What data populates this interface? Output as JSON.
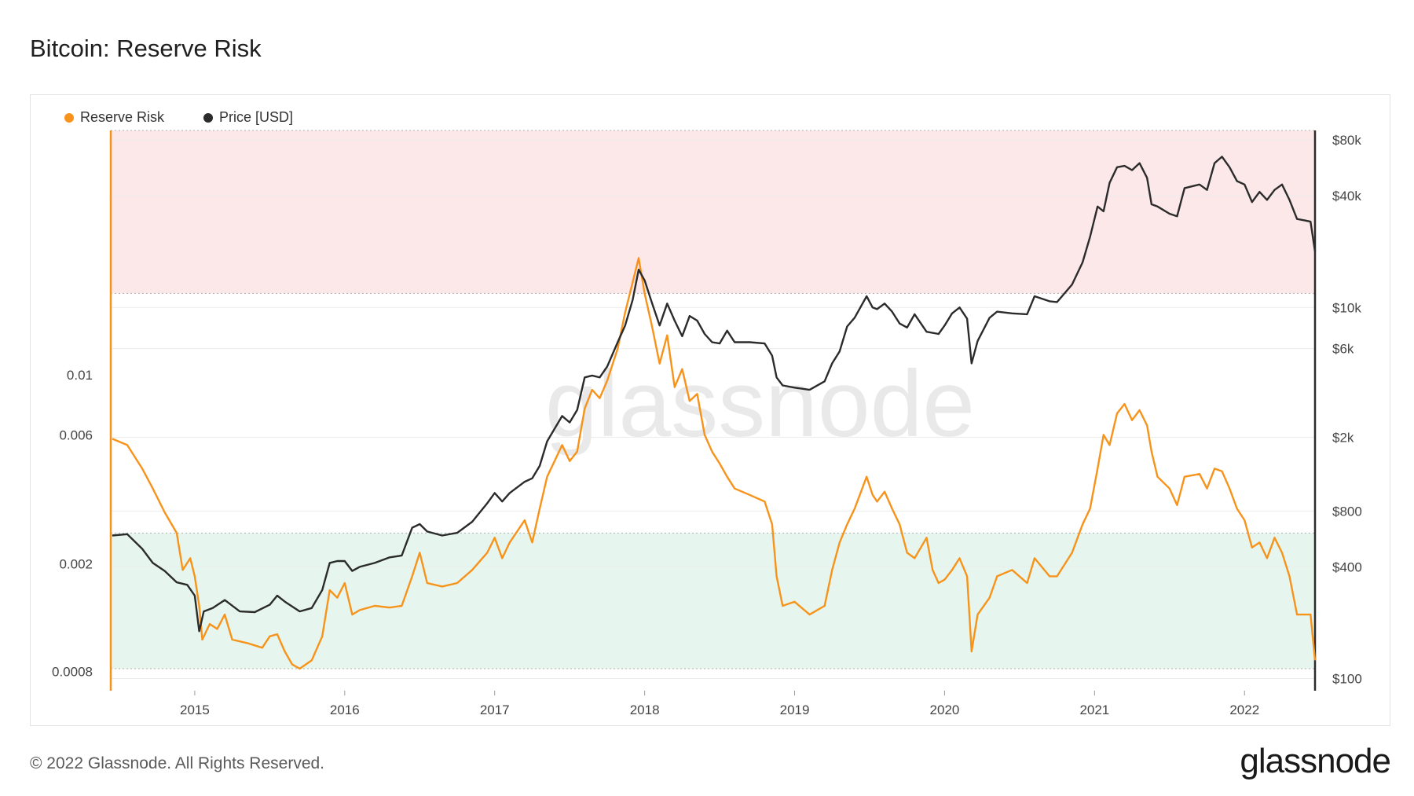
{
  "title": "Bitcoin: Reserve Risk",
  "footer": "© 2022 Glassnode. All Rights Reserved.",
  "brand": "glassnode",
  "watermark": "glassnode",
  "legend": [
    {
      "label": "Reserve Risk",
      "color": "#f7931a"
    },
    {
      "label": "Price [USD]",
      "color": "#2b2b2b"
    }
  ],
  "chart_data": {
    "type": "line",
    "title": "Bitcoin: Reserve Risk",
    "x_ticks": [
      "2015",
      "2016",
      "2017",
      "2018",
      "2019",
      "2020",
      "2021",
      "2022"
    ],
    "x_range": [
      2014.44,
      2022.47
    ],
    "left_axis": {
      "scale": "log",
      "range": [
        0.00068,
        0.08
      ],
      "ticks": [
        {
          "value": 0.0008,
          "label": "0.0008"
        },
        {
          "value": 0.002,
          "label": "0.002"
        },
        {
          "value": 0.006,
          "label": "0.006"
        },
        {
          "value": 0.01,
          "label": "0.01"
        }
      ]
    },
    "right_axis": {
      "scale": "log",
      "range": [
        86,
        90000
      ],
      "ticks": [
        {
          "value": 100,
          "label": "$100"
        },
        {
          "value": 400,
          "label": "$400"
        },
        {
          "value": 800,
          "label": "$800"
        },
        {
          "value": 2000,
          "label": "$2k"
        },
        {
          "value": 6000,
          "label": "$6k"
        },
        {
          "value": 10000,
          "label": "$10k"
        },
        {
          "value": 40000,
          "label": "$40k"
        },
        {
          "value": 80000,
          "label": "$80k"
        }
      ]
    },
    "bands": [
      {
        "name": "red",
        "from": 0.02,
        "to": 0.08,
        "color": "#fce8e8"
      },
      {
        "name": "green",
        "from": 0.00082,
        "to": 0.0026,
        "color": "#e6f6ee"
      }
    ],
    "series": [
      {
        "name": "Reserve Risk",
        "axis": "left",
        "color": "#f7931a",
        "points": [
          [
            2014.45,
            0.0058
          ],
          [
            2014.55,
            0.0055
          ],
          [
            2014.65,
            0.0045
          ],
          [
            2014.72,
            0.0038
          ],
          [
            2014.8,
            0.0031
          ],
          [
            2014.88,
            0.0026
          ],
          [
            2014.92,
            0.0019
          ],
          [
            2014.97,
            0.0021
          ],
          [
            2015.0,
            0.0018
          ],
          [
            2015.03,
            0.0014
          ],
          [
            2015.05,
            0.00105
          ],
          [
            2015.1,
            0.0012
          ],
          [
            2015.15,
            0.00115
          ],
          [
            2015.2,
            0.0013
          ],
          [
            2015.25,
            0.00105
          ],
          [
            2015.35,
            0.00102
          ],
          [
            2015.45,
            0.00098
          ],
          [
            2015.5,
            0.00108
          ],
          [
            2015.55,
            0.0011
          ],
          [
            2015.6,
            0.00095
          ],
          [
            2015.65,
            0.00085
          ],
          [
            2015.7,
            0.00082
          ],
          [
            2015.78,
            0.00088
          ],
          [
            2015.85,
            0.00108
          ],
          [
            2015.9,
            0.0016
          ],
          [
            2015.95,
            0.0015
          ],
          [
            2016.0,
            0.0017
          ],
          [
            2016.05,
            0.0013
          ],
          [
            2016.1,
            0.00135
          ],
          [
            2016.2,
            0.0014
          ],
          [
            2016.3,
            0.00138
          ],
          [
            2016.38,
            0.0014
          ],
          [
            2016.45,
            0.0018
          ],
          [
            2016.5,
            0.0022
          ],
          [
            2016.55,
            0.0017
          ],
          [
            2016.65,
            0.00165
          ],
          [
            2016.75,
            0.0017
          ],
          [
            2016.85,
            0.0019
          ],
          [
            2016.95,
            0.0022
          ],
          [
            2017.0,
            0.0025
          ],
          [
            2017.05,
            0.0021
          ],
          [
            2017.1,
            0.0024
          ],
          [
            2017.2,
            0.0029
          ],
          [
            2017.25,
            0.0024
          ],
          [
            2017.3,
            0.0032
          ],
          [
            2017.35,
            0.0042
          ],
          [
            2017.45,
            0.0055
          ],
          [
            2017.5,
            0.0048
          ],
          [
            2017.55,
            0.0052
          ],
          [
            2017.6,
            0.0075
          ],
          [
            2017.65,
            0.0088
          ],
          [
            2017.7,
            0.0082
          ],
          [
            2017.75,
            0.0095
          ],
          [
            2017.82,
            0.0125
          ],
          [
            2017.87,
            0.017
          ],
          [
            2017.92,
            0.022
          ],
          [
            2017.96,
            0.027
          ],
          [
            2018.0,
            0.02
          ],
          [
            2018.05,
            0.015
          ],
          [
            2018.1,
            0.011
          ],
          [
            2018.15,
            0.014
          ],
          [
            2018.2,
            0.009
          ],
          [
            2018.25,
            0.0105
          ],
          [
            2018.3,
            0.008
          ],
          [
            2018.35,
            0.0085
          ],
          [
            2018.4,
            0.006
          ],
          [
            2018.45,
            0.0052
          ],
          [
            2018.5,
            0.0047
          ],
          [
            2018.55,
            0.0042
          ],
          [
            2018.6,
            0.0038
          ],
          [
            2018.7,
            0.0036
          ],
          [
            2018.8,
            0.0034
          ],
          [
            2018.85,
            0.0028
          ],
          [
            2018.88,
            0.0018
          ],
          [
            2018.92,
            0.0014
          ],
          [
            2019.0,
            0.00145
          ],
          [
            2019.1,
            0.0013
          ],
          [
            2019.2,
            0.0014
          ],
          [
            2019.25,
            0.0019
          ],
          [
            2019.3,
            0.0024
          ],
          [
            2019.35,
            0.0028
          ],
          [
            2019.4,
            0.0032
          ],
          [
            2019.48,
            0.0042
          ],
          [
            2019.52,
            0.0036
          ],
          [
            2019.55,
            0.0034
          ],
          [
            2019.6,
            0.0037
          ],
          [
            2019.65,
            0.0032
          ],
          [
            2019.7,
            0.0028
          ],
          [
            2019.75,
            0.0022
          ],
          [
            2019.8,
            0.0021
          ],
          [
            2019.88,
            0.0025
          ],
          [
            2019.92,
            0.0019
          ],
          [
            2019.96,
            0.0017
          ],
          [
            2020.0,
            0.00175
          ],
          [
            2020.05,
            0.0019
          ],
          [
            2020.1,
            0.0021
          ],
          [
            2020.15,
            0.0018
          ],
          [
            2020.18,
            0.00095
          ],
          [
            2020.22,
            0.0013
          ],
          [
            2020.3,
            0.0015
          ],
          [
            2020.35,
            0.0018
          ],
          [
            2020.45,
            0.0019
          ],
          [
            2020.55,
            0.0017
          ],
          [
            2020.6,
            0.0021
          ],
          [
            2020.7,
            0.0018
          ],
          [
            2020.75,
            0.0018
          ],
          [
            2020.85,
            0.0022
          ],
          [
            2020.92,
            0.0028
          ],
          [
            2020.97,
            0.0032
          ],
          [
            2021.02,
            0.0045
          ],
          [
            2021.06,
            0.006
          ],
          [
            2021.1,
            0.0055
          ],
          [
            2021.15,
            0.0072
          ],
          [
            2021.2,
            0.0078
          ],
          [
            2021.25,
            0.0068
          ],
          [
            2021.3,
            0.0074
          ],
          [
            2021.35,
            0.0065
          ],
          [
            2021.38,
            0.0052
          ],
          [
            2021.42,
            0.0042
          ],
          [
            2021.5,
            0.0038
          ],
          [
            2021.55,
            0.0033
          ],
          [
            2021.6,
            0.0042
          ],
          [
            2021.7,
            0.0043
          ],
          [
            2021.75,
            0.0038
          ],
          [
            2021.8,
            0.0045
          ],
          [
            2021.85,
            0.0044
          ],
          [
            2021.9,
            0.0038
          ],
          [
            2021.95,
            0.0032
          ],
          [
            2022.0,
            0.0029
          ],
          [
            2022.05,
            0.0023
          ],
          [
            2022.1,
            0.0024
          ],
          [
            2022.15,
            0.0021
          ],
          [
            2022.2,
            0.0025
          ],
          [
            2022.25,
            0.0022
          ],
          [
            2022.3,
            0.0018
          ],
          [
            2022.35,
            0.0013
          ],
          [
            2022.4,
            0.0013
          ],
          [
            2022.44,
            0.0013
          ],
          [
            2022.47,
            0.00088
          ]
        ]
      },
      {
        "name": "Price [USD]",
        "axis": "right",
        "color": "#2b2b2b",
        "points": [
          [
            2014.45,
            590
          ],
          [
            2014.55,
            600
          ],
          [
            2014.65,
            500
          ],
          [
            2014.72,
            420
          ],
          [
            2014.8,
            380
          ],
          [
            2014.88,
            330
          ],
          [
            2014.95,
            320
          ],
          [
            2015.0,
            280
          ],
          [
            2015.03,
            180
          ],
          [
            2015.06,
            230
          ],
          [
            2015.12,
            240
          ],
          [
            2015.2,
            265
          ],
          [
            2015.3,
            230
          ],
          [
            2015.4,
            228
          ],
          [
            2015.5,
            250
          ],
          [
            2015.55,
            280
          ],
          [
            2015.6,
            260
          ],
          [
            2015.7,
            230
          ],
          [
            2015.78,
            240
          ],
          [
            2015.85,
            300
          ],
          [
            2015.9,
            420
          ],
          [
            2015.95,
            430
          ],
          [
            2016.0,
            430
          ],
          [
            2016.05,
            380
          ],
          [
            2016.1,
            400
          ],
          [
            2016.2,
            420
          ],
          [
            2016.3,
            450
          ],
          [
            2016.38,
            460
          ],
          [
            2016.45,
            650
          ],
          [
            2016.5,
            680
          ],
          [
            2016.55,
            620
          ],
          [
            2016.65,
            590
          ],
          [
            2016.75,
            610
          ],
          [
            2016.85,
            700
          ],
          [
            2016.95,
            880
          ],
          [
            2017.0,
            1000
          ],
          [
            2017.05,
            900
          ],
          [
            2017.1,
            1000
          ],
          [
            2017.2,
            1150
          ],
          [
            2017.25,
            1200
          ],
          [
            2017.3,
            1400
          ],
          [
            2017.35,
            1900
          ],
          [
            2017.45,
            2600
          ],
          [
            2017.5,
            2400
          ],
          [
            2017.55,
            2800
          ],
          [
            2017.6,
            4200
          ],
          [
            2017.65,
            4300
          ],
          [
            2017.7,
            4200
          ],
          [
            2017.75,
            4800
          ],
          [
            2017.82,
            6500
          ],
          [
            2017.87,
            8000
          ],
          [
            2017.92,
            11000
          ],
          [
            2017.96,
            16000
          ],
          [
            2018.0,
            14000
          ],
          [
            2018.05,
            10500
          ],
          [
            2018.1,
            8000
          ],
          [
            2018.15,
            10500
          ],
          [
            2018.2,
            8500
          ],
          [
            2018.25,
            7000
          ],
          [
            2018.3,
            9000
          ],
          [
            2018.35,
            8500
          ],
          [
            2018.4,
            7200
          ],
          [
            2018.45,
            6500
          ],
          [
            2018.5,
            6400
          ],
          [
            2018.55,
            7500
          ],
          [
            2018.6,
            6500
          ],
          [
            2018.7,
            6500
          ],
          [
            2018.8,
            6400
          ],
          [
            2018.85,
            5500
          ],
          [
            2018.88,
            4200
          ],
          [
            2018.92,
            3800
          ],
          [
            2019.0,
            3700
          ],
          [
            2019.1,
            3600
          ],
          [
            2019.2,
            4000
          ],
          [
            2019.25,
            5000
          ],
          [
            2019.3,
            5800
          ],
          [
            2019.35,
            7900
          ],
          [
            2019.4,
            8800
          ],
          [
            2019.48,
            11500
          ],
          [
            2019.52,
            10000
          ],
          [
            2019.55,
            9800
          ],
          [
            2019.6,
            10500
          ],
          [
            2019.65,
            9500
          ],
          [
            2019.7,
            8200
          ],
          [
            2019.75,
            7800
          ],
          [
            2019.8,
            9200
          ],
          [
            2019.88,
            7400
          ],
          [
            2019.96,
            7200
          ],
          [
            2020.0,
            8000
          ],
          [
            2020.05,
            9300
          ],
          [
            2020.1,
            10000
          ],
          [
            2020.15,
            8700
          ],
          [
            2020.18,
            5000
          ],
          [
            2020.22,
            6600
          ],
          [
            2020.3,
            8800
          ],
          [
            2020.35,
            9500
          ],
          [
            2020.45,
            9300
          ],
          [
            2020.55,
            9200
          ],
          [
            2020.6,
            11500
          ],
          [
            2020.7,
            10800
          ],
          [
            2020.75,
            10700
          ],
          [
            2020.85,
            13300
          ],
          [
            2020.92,
            17500
          ],
          [
            2020.97,
            24000
          ],
          [
            2021.02,
            35000
          ],
          [
            2021.06,
            33000
          ],
          [
            2021.1,
            47000
          ],
          [
            2021.15,
            57000
          ],
          [
            2021.2,
            58000
          ],
          [
            2021.25,
            55000
          ],
          [
            2021.3,
            60000
          ],
          [
            2021.35,
            50000
          ],
          [
            2021.38,
            36000
          ],
          [
            2021.42,
            35000
          ],
          [
            2021.5,
            32000
          ],
          [
            2021.55,
            31000
          ],
          [
            2021.6,
            44000
          ],
          [
            2021.7,
            46000
          ],
          [
            2021.75,
            43000
          ],
          [
            2021.8,
            60000
          ],
          [
            2021.85,
            65000
          ],
          [
            2021.9,
            57000
          ],
          [
            2021.95,
            48000
          ],
          [
            2022.0,
            46000
          ],
          [
            2022.05,
            37000
          ],
          [
            2022.1,
            42000
          ],
          [
            2022.15,
            38000
          ],
          [
            2022.2,
            43000
          ],
          [
            2022.25,
            46000
          ],
          [
            2022.3,
            38000
          ],
          [
            2022.35,
            30000
          ],
          [
            2022.4,
            29500
          ],
          [
            2022.44,
            29000
          ],
          [
            2022.47,
            20000
          ]
        ]
      }
    ]
  }
}
